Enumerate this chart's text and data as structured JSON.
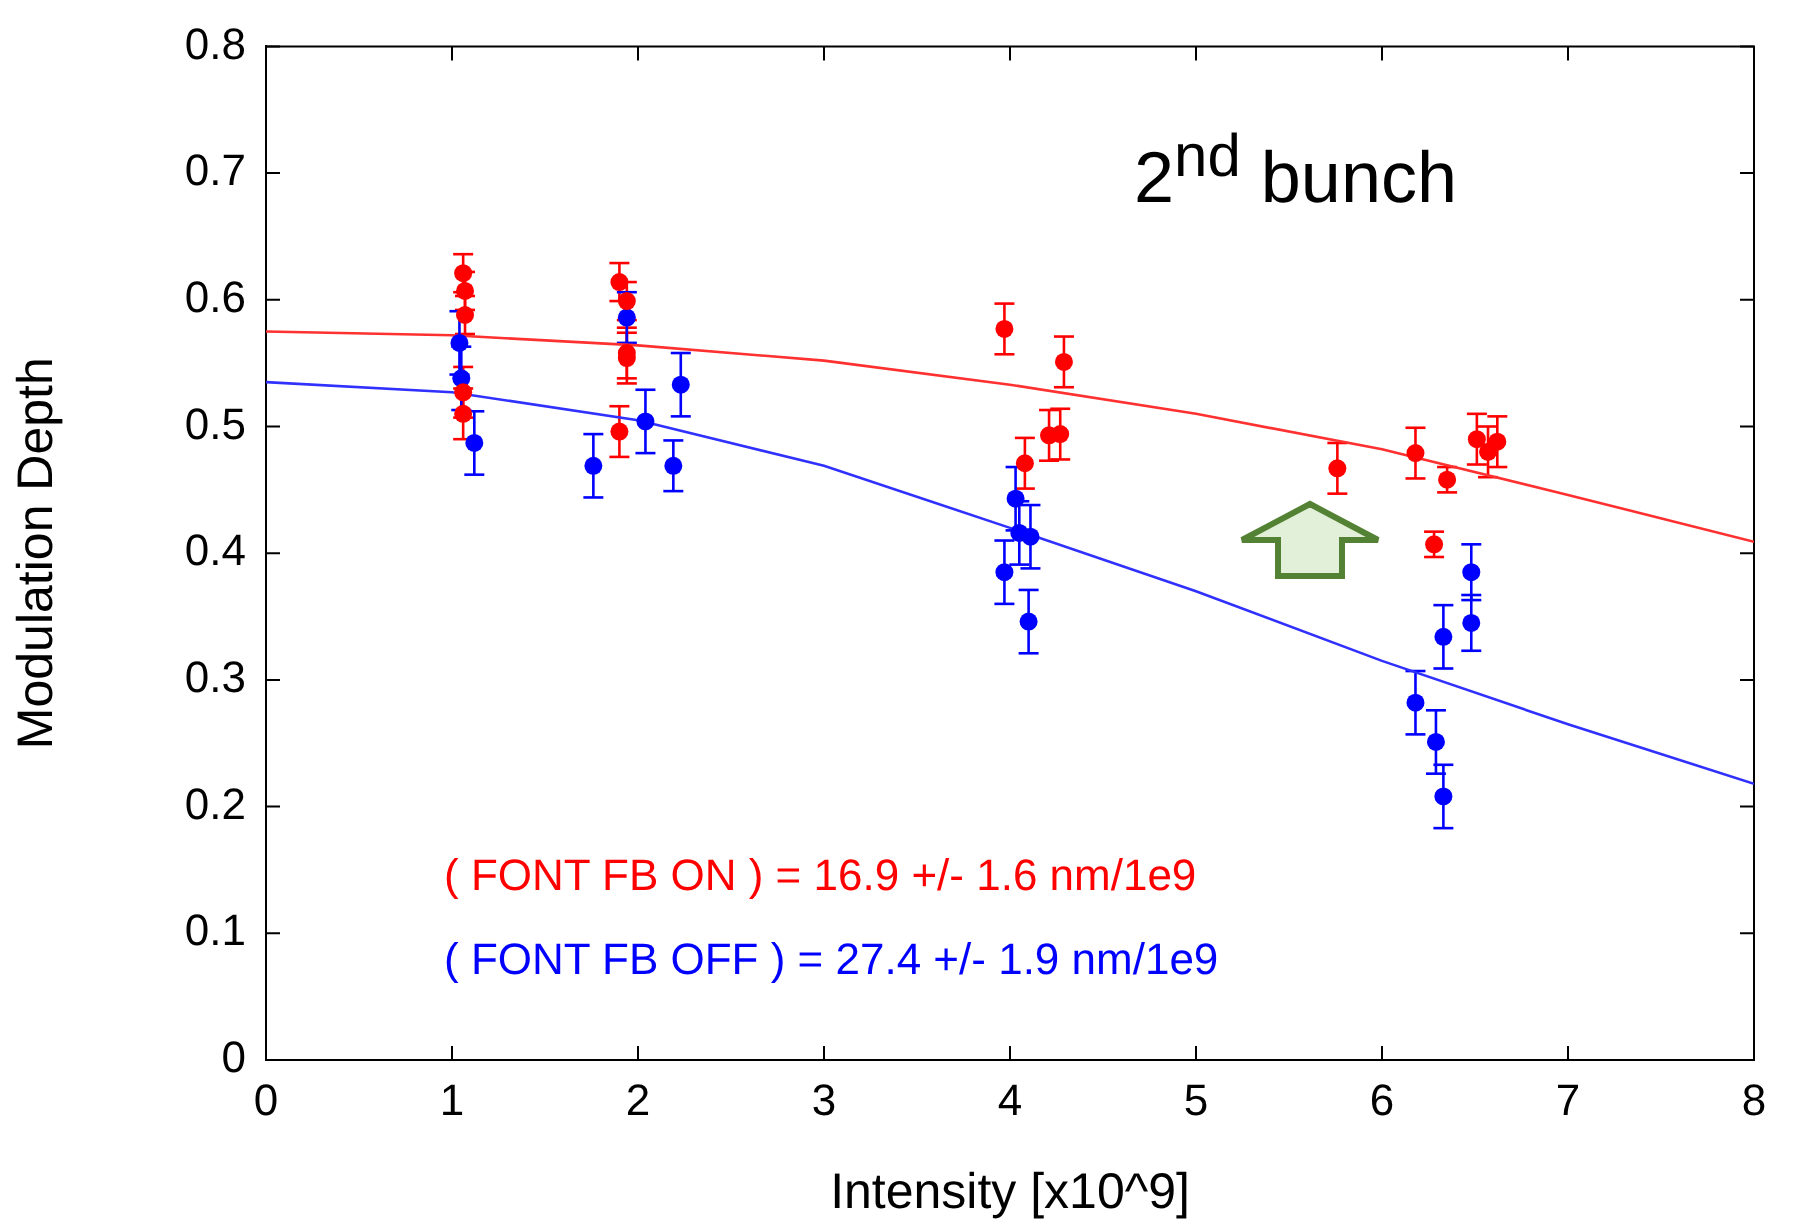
{
  "chart_data": {
    "type": "scatter",
    "xlabel": "Intensity [x10^9]",
    "ylabel": "Modulation Depth",
    "xlim": [
      0,
      8
    ],
    "xticks": [
      0,
      1,
      2,
      3,
      4,
      5,
      6,
      7,
      8
    ],
    "ylim": [
      0,
      0.8
    ],
    "yticks": [
      0,
      0.1,
      0.2,
      0.3,
      0.4,
      0.5,
      0.6,
      0.7,
      0.8
    ],
    "grid": false,
    "legend": false,
    "marker": "circle",
    "annotations": [
      "2$^{nd}$ bunch",
      "( FONT FB  ON  ) = 16.9 +/- 1.6 nm/1e9",
      "( FONT FB OFF ) = 27.4 +/- 1.9 nm/1e9"
    ],
    "series": [
      {
        "color": "#ff0000",
        "x": [
          1.06,
          1.07,
          1.07,
          1.06,
          1.06,
          1.9,
          1.94,
          1.94,
          1.94,
          1.9,
          3.97,
          4.29,
          4.27,
          4.21,
          4.08,
          5.76,
          6.18,
          6.28,
          6.35,
          6.51,
          6.57,
          6.62
        ],
        "values": [
          0.621,
          0.607,
          0.588,
          0.527,
          0.51,
          0.614,
          0.599,
          0.558,
          0.554,
          0.496,
          0.577,
          0.551,
          0.494,
          0.493,
          0.471,
          0.467,
          0.479,
          0.407,
          0.458,
          0.49,
          0.48,
          0.488
        ],
        "errors": [
          0.015,
          0.015,
          0.015,
          0.02,
          0.02,
          0.015,
          0.015,
          0.02,
          0.02,
          0.02,
          0.02,
          0.02,
          0.02,
          0.02,
          0.02,
          0.02,
          0.02,
          0.01,
          0.01,
          0.02,
          0.02,
          0.02
        ]
      },
      {
        "color": "#0000ff",
        "x": [
          1.04,
          1.05,
          1.12,
          1.94,
          1.76,
          2.04,
          2.23,
          2.19,
          4.03,
          4.05,
          4.11,
          3.97,
          4.1,
          6.48,
          6.48,
          6.33,
          6.18,
          6.29,
          6.33
        ],
        "values": [
          0.566,
          0.538,
          0.487,
          0.586,
          0.469,
          0.504,
          0.533,
          0.469,
          0.443,
          0.416,
          0.413,
          0.385,
          0.346,
          0.385,
          0.345,
          0.334,
          0.282,
          0.251,
          0.208
        ],
        "errors": [
          0.025,
          0.025,
          0.025,
          0.02,
          0.025,
          0.025,
          0.025,
          0.02,
          0.025,
          0.025,
          0.025,
          0.025,
          0.025,
          0.022,
          0.022,
          0.025,
          0.025,
          0.025,
          0.025
        ]
      },
      {
        "type": "line",
        "marker": "none",
        "color": "#ff3030",
        "x": [
          0,
          1,
          2,
          3,
          4,
          5,
          6,
          7,
          8
        ],
        "values": [
          0.575,
          0.572,
          0.564,
          0.552,
          0.533,
          0.51,
          0.482,
          0.446,
          0.409
        ]
      },
      {
        "type": "line",
        "marker": "none",
        "color": "#3030ff",
        "x": [
          0,
          1,
          2,
          3,
          4,
          5,
          6,
          7,
          8
        ],
        "values": [
          0.535,
          0.527,
          0.505,
          0.469,
          0.42,
          0.37,
          0.315,
          0.265,
          0.218
        ]
      }
    ]
  }
}
